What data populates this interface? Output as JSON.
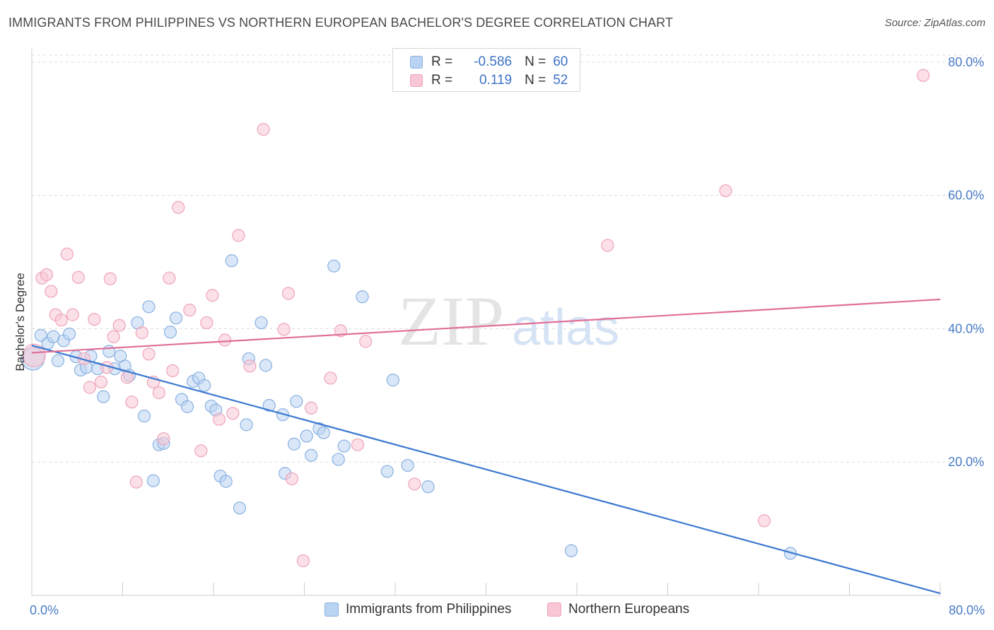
{
  "title": "IMMIGRANTS FROM PHILIPPINES VS NORTHERN EUROPEAN BACHELOR'S DEGREE CORRELATION CHART",
  "source": "Source: ZipAtlas.com",
  "watermark": {
    "zip": "ZIP",
    "atlas": "atlas"
  },
  "colors": {
    "blue_fill": "#b9d3f2",
    "blue_stroke": "#8ab1e0",
    "blue_line": "#3a78d0",
    "pink_fill": "#f8c6d4",
    "pink_stroke": "#eea4ba",
    "pink_line": "#e07097",
    "tick_text": "#4a7cc7",
    "grid": "#dddddd"
  },
  "legend": {
    "rows": [
      {
        "r_label": "R =",
        "r_value": "-0.586",
        "n_label": "N =",
        "n_value": "60"
      },
      {
        "r_label": "R =",
        "r_value": "0.119",
        "n_label": "N =",
        "n_value": "52"
      }
    ]
  },
  "chart_data": {
    "type": "scatter",
    "title": "IMMIGRANTS FROM PHILIPPINES VS NORTHERN EUROPEAN BACHELOR'S DEGREE CORRELATION CHART",
    "xlabel": "",
    "ylabel": "Bachelor's Degree",
    "xlim": [
      0,
      80
    ],
    "ylim": [
      0,
      82
    ],
    "x_tick_labels": [
      "0.0%",
      "80.0%"
    ],
    "y_ticks": [
      20,
      40,
      60,
      80
    ],
    "y_tick_labels": [
      "20.0%",
      "40.0%",
      "60.0%",
      "80.0%"
    ],
    "grid": "horizontal dashed",
    "legend_position": "bottom-center",
    "series": [
      {
        "name": "Immigrants from Philippines",
        "color": "#b9d3f2",
        "trend": {
          "x": [
            0,
            80
          ],
          "y": [
            37.5,
            0.3
          ]
        },
        "points": [
          {
            "x": 0.1,
            "y": 35.5,
            "big": true
          },
          {
            "x": 0.8,
            "y": 39.0
          },
          {
            "x": 1.4,
            "y": 37.8
          },
          {
            "x": 1.9,
            "y": 38.8
          },
          {
            "x": 2.3,
            "y": 35.2
          },
          {
            "x": 2.8,
            "y": 38.2
          },
          {
            "x": 3.3,
            "y": 39.2
          },
          {
            "x": 3.9,
            "y": 35.8
          },
          {
            "x": 4.3,
            "y": 33.8
          },
          {
            "x": 4.8,
            "y": 34.2
          },
          {
            "x": 5.2,
            "y": 35.9
          },
          {
            "x": 5.8,
            "y": 34.0
          },
          {
            "x": 6.3,
            "y": 29.8
          },
          {
            "x": 6.8,
            "y": 36.6
          },
          {
            "x": 7.3,
            "y": 34.0
          },
          {
            "x": 7.8,
            "y": 35.9
          },
          {
            "x": 8.2,
            "y": 34.4
          },
          {
            "x": 8.6,
            "y": 33.0
          },
          {
            "x": 9.3,
            "y": 40.9
          },
          {
            "x": 9.9,
            "y": 26.9
          },
          {
            "x": 10.3,
            "y": 43.3
          },
          {
            "x": 10.7,
            "y": 17.2
          },
          {
            "x": 11.2,
            "y": 22.6
          },
          {
            "x": 11.6,
            "y": 22.8
          },
          {
            "x": 12.2,
            "y": 39.5
          },
          {
            "x": 12.7,
            "y": 41.6
          },
          {
            "x": 13.2,
            "y": 29.4
          },
          {
            "x": 13.7,
            "y": 28.3
          },
          {
            "x": 14.2,
            "y": 32.1
          },
          {
            "x": 14.7,
            "y": 32.6
          },
          {
            "x": 15.2,
            "y": 31.5
          },
          {
            "x": 15.8,
            "y": 28.4
          },
          {
            "x": 16.2,
            "y": 27.8
          },
          {
            "x": 16.6,
            "y": 17.9
          },
          {
            "x": 17.1,
            "y": 17.1
          },
          {
            "x": 17.6,
            "y": 50.2
          },
          {
            "x": 18.3,
            "y": 13.1
          },
          {
            "x": 18.9,
            "y": 25.6
          },
          {
            "x": 19.1,
            "y": 35.5
          },
          {
            "x": 20.2,
            "y": 40.9
          },
          {
            "x": 20.6,
            "y": 34.5
          },
          {
            "x": 20.9,
            "y": 28.5
          },
          {
            "x": 22.1,
            "y": 27.1
          },
          {
            "x": 22.3,
            "y": 18.3
          },
          {
            "x": 23.1,
            "y": 22.7
          },
          {
            "x": 23.3,
            "y": 29.1
          },
          {
            "x": 24.2,
            "y": 23.9
          },
          {
            "x": 24.6,
            "y": 21.0
          },
          {
            "x": 25.3,
            "y": 25.0
          },
          {
            "x": 25.7,
            "y": 24.4
          },
          {
            "x": 26.6,
            "y": 49.4
          },
          {
            "x": 27.0,
            "y": 20.4
          },
          {
            "x": 27.5,
            "y": 22.4
          },
          {
            "x": 29.1,
            "y": 44.8
          },
          {
            "x": 31.3,
            "y": 18.6
          },
          {
            "x": 31.8,
            "y": 32.3
          },
          {
            "x": 33.1,
            "y": 19.5
          },
          {
            "x": 34.9,
            "y": 16.3
          },
          {
            "x": 47.5,
            "y": 6.7
          },
          {
            "x": 66.8,
            "y": 6.3
          }
        ]
      },
      {
        "name": "Northern Europeans",
        "color": "#f8c6d4",
        "trend": {
          "x": [
            0,
            80
          ],
          "y": [
            36.4,
            44.4
          ]
        },
        "points": [
          {
            "x": 0.2,
            "y": 36.0,
            "big": true
          },
          {
            "x": 0.9,
            "y": 47.6
          },
          {
            "x": 1.3,
            "y": 48.1
          },
          {
            "x": 1.7,
            "y": 45.6
          },
          {
            "x": 2.1,
            "y": 42.1
          },
          {
            "x": 2.6,
            "y": 41.3
          },
          {
            "x": 3.1,
            "y": 51.2
          },
          {
            "x": 3.6,
            "y": 42.1
          },
          {
            "x": 4.1,
            "y": 47.7
          },
          {
            "x": 4.6,
            "y": 35.5
          },
          {
            "x": 5.1,
            "y": 31.2
          },
          {
            "x": 5.5,
            "y": 41.4
          },
          {
            "x": 6.1,
            "y": 32.0
          },
          {
            "x": 6.6,
            "y": 34.2
          },
          {
            "x": 6.9,
            "y": 47.5
          },
          {
            "x": 7.2,
            "y": 38.8
          },
          {
            "x": 7.7,
            "y": 40.5
          },
          {
            "x": 8.4,
            "y": 32.7
          },
          {
            "x": 8.8,
            "y": 29.0
          },
          {
            "x": 9.2,
            "y": 17.0
          },
          {
            "x": 9.7,
            "y": 39.4
          },
          {
            "x": 10.3,
            "y": 36.2
          },
          {
            "x": 10.7,
            "y": 32.0
          },
          {
            "x": 11.2,
            "y": 30.4
          },
          {
            "x": 11.6,
            "y": 23.5
          },
          {
            "x": 12.1,
            "y": 47.6
          },
          {
            "x": 12.4,
            "y": 33.7
          },
          {
            "x": 12.9,
            "y": 58.2
          },
          {
            "x": 13.9,
            "y": 42.8
          },
          {
            "x": 14.9,
            "y": 21.7
          },
          {
            "x": 15.4,
            "y": 40.9
          },
          {
            "x": 15.9,
            "y": 45.0
          },
          {
            "x": 16.5,
            "y": 26.4
          },
          {
            "x": 17.0,
            "y": 38.3
          },
          {
            "x": 17.7,
            "y": 27.3
          },
          {
            "x": 18.2,
            "y": 54.0
          },
          {
            "x": 19.2,
            "y": 34.4
          },
          {
            "x": 20.4,
            "y": 69.9
          },
          {
            "x": 22.2,
            "y": 39.9
          },
          {
            "x": 22.6,
            "y": 45.3
          },
          {
            "x": 22.9,
            "y": 17.5
          },
          {
            "x": 23.9,
            "y": 5.2
          },
          {
            "x": 24.6,
            "y": 28.1
          },
          {
            "x": 26.3,
            "y": 32.6
          },
          {
            "x": 27.2,
            "y": 39.7
          },
          {
            "x": 28.7,
            "y": 22.6
          },
          {
            "x": 29.4,
            "y": 38.1
          },
          {
            "x": 33.7,
            "y": 16.7
          },
          {
            "x": 50.7,
            "y": 52.5
          },
          {
            "x": 61.1,
            "y": 60.7
          },
          {
            "x": 64.5,
            "y": 11.2
          },
          {
            "x": 78.5,
            "y": 78.0
          }
        ]
      }
    ]
  },
  "bottom_legend": {
    "items": [
      "Immigrants from Philippines",
      "Northern Europeans"
    ]
  }
}
